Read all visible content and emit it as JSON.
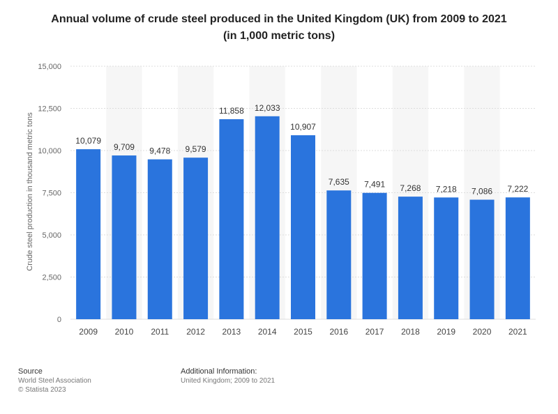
{
  "title_line1": "Annual volume of crude steel produced in the United Kingdom (UK) from 2009 to 2021",
  "title_line2": "(in 1,000 metric tons)",
  "footer": {
    "source_heading": "Source",
    "source_line1": "World Steel Association",
    "source_line2": "© Statista 2023",
    "info_heading": "Additional Information:",
    "info_line1": "United Kingdom; 2009 to 2021"
  },
  "colors": {
    "bar": "#2a74dd",
    "stripe": "#f6f6f6",
    "grid": "#dddddd"
  },
  "chart_data": {
    "type": "bar",
    "title": "Annual volume of crude steel produced in the United Kingdom (UK) from 2009 to 2021 (in 1,000 metric tons)",
    "xlabel": "",
    "ylabel": "Crude steel production in thousand metric tons",
    "categories": [
      "2009",
      "2010",
      "2011",
      "2012",
      "2013",
      "2014",
      "2015",
      "2016",
      "2017",
      "2018",
      "2019",
      "2020",
      "2021"
    ],
    "values": [
      10079,
      9709,
      9478,
      9579,
      11858,
      12033,
      10907,
      7635,
      7491,
      7268,
      7218,
      7086,
      7222
    ],
    "value_labels": [
      "10,079",
      "9,709",
      "9,478",
      "9,579",
      "11,858",
      "12,033",
      "10,907",
      "7,635",
      "7,491",
      "7,268",
      "7,218",
      "7,086",
      "7,222"
    ],
    "yticks": [
      0,
      2500,
      5000,
      7500,
      10000,
      12500,
      15000
    ],
    "ytick_labels": [
      "0",
      "2,500",
      "5,000",
      "7,500",
      "10,000",
      "12,500",
      "15,000"
    ],
    "ylim": [
      0,
      15000
    ],
    "grid": true,
    "legend": "none"
  }
}
